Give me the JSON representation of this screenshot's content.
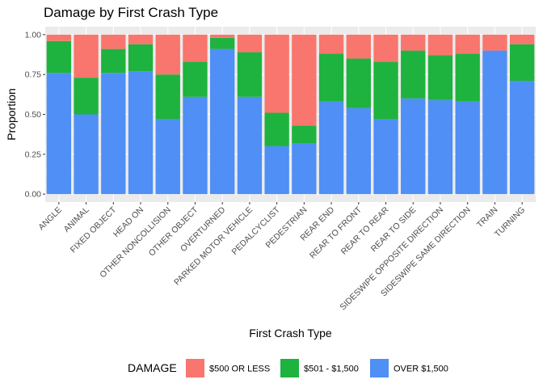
{
  "chart_data": {
    "type": "bar",
    "stacked": "proportion",
    "title": "Damage by First Crash Type",
    "xlabel": "First Crash Type",
    "ylabel": "Proportion",
    "ylim": [
      0,
      1
    ],
    "yticks": [
      "0.00",
      "0.25",
      "0.50",
      "0.75",
      "1.00"
    ],
    "grid": true,
    "legend": {
      "title": "DAMAGE",
      "placement": "bottom"
    },
    "categories": [
      "ANGLE",
      "ANIMAL",
      "FIXED OBJECT",
      "HEAD ON",
      "OTHER NONCOLLISION",
      "OTHER OBJECT",
      "OVERTURNED",
      "PARKED MOTOR VEHICLE",
      "PEDALCYCLIST",
      "PEDESTRIAN",
      "REAR END",
      "REAR TO FRONT",
      "REAR TO REAR",
      "REAR TO SIDE",
      "SIDESWIPE OPPOSITE DIRECTION",
      "SIDESWIPE SAME DIRECTION",
      "TRAIN",
      "TURNING"
    ],
    "series": [
      {
        "name": "$500 OR LESS",
        "color": "#F8766D",
        "values": [
          0.04,
          0.27,
          0.09,
          0.06,
          0.25,
          0.17,
          0.02,
          0.11,
          0.49,
          0.57,
          0.12,
          0.15,
          0.17,
          0.1,
          0.13,
          0.12,
          0.1,
          0.06
        ]
      },
      {
        "name": "$501 - $1,500",
        "color": "#1EB33E",
        "values": [
          0.2,
          0.23,
          0.15,
          0.17,
          0.28,
          0.22,
          0.07,
          0.28,
          0.21,
          0.11,
          0.3,
          0.31,
          0.36,
          0.3,
          0.28,
          0.3,
          0.0,
          0.23
        ]
      },
      {
        "name": "OVER $1,500",
        "color": "#4F8FF6",
        "values": [
          0.76,
          0.5,
          0.76,
          0.77,
          0.47,
          0.61,
          0.91,
          0.61,
          0.3,
          0.32,
          0.58,
          0.54,
          0.47,
          0.6,
          0.59,
          0.58,
          0.9,
          0.71
        ]
      }
    ]
  }
}
